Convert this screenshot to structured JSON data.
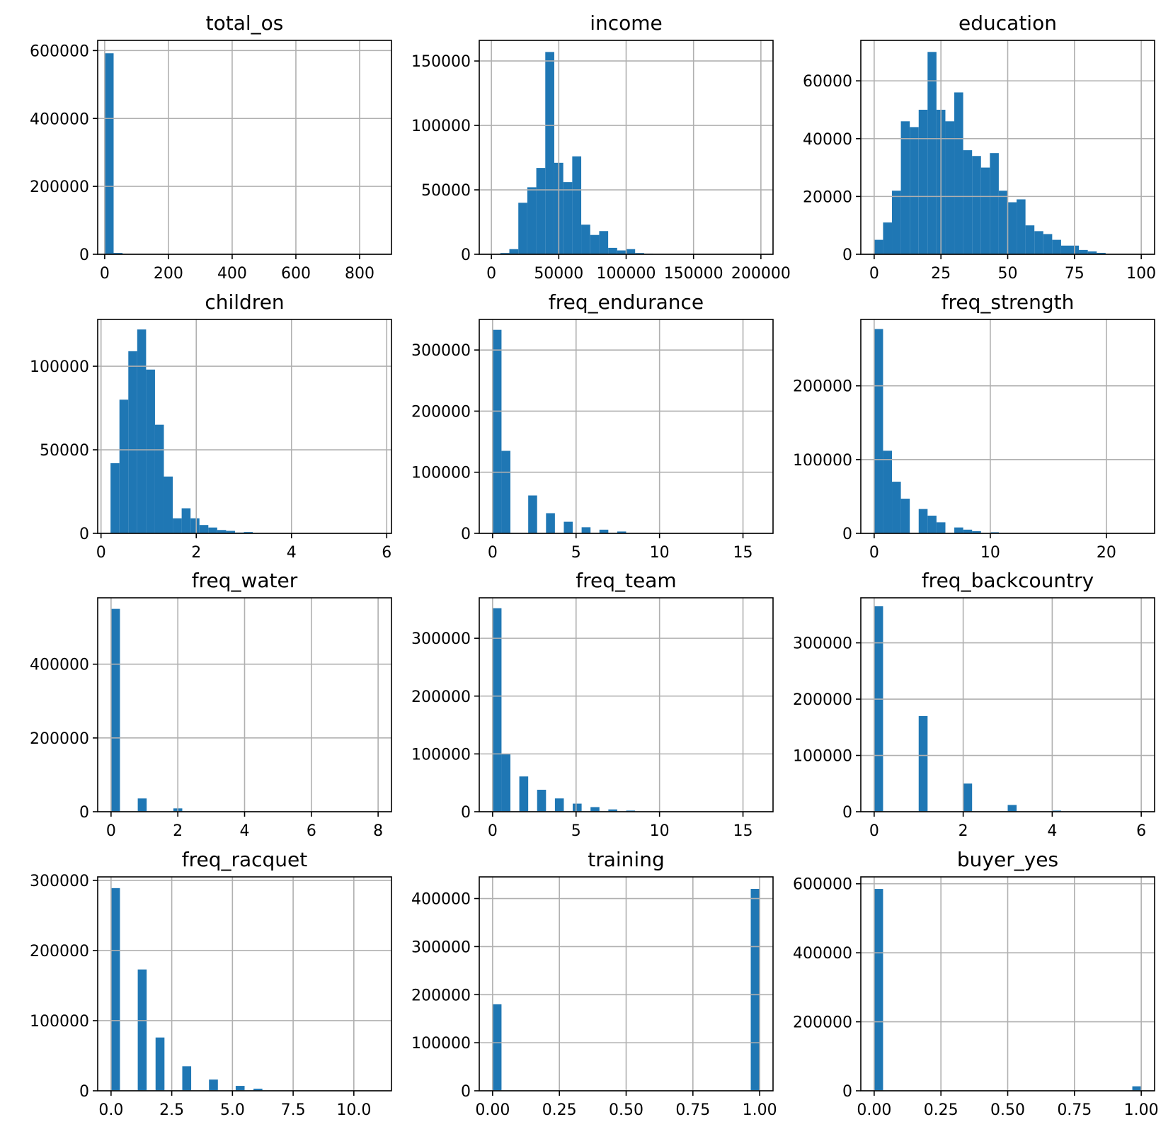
{
  "chart_data": [
    {
      "type": "bar",
      "title": "total_os",
      "bar_color": "#1f77b4",
      "xlim": [
        -22,
        900
      ],
      "ylim": [
        0,
        630000
      ],
      "xticks": [
        0,
        200,
        400,
        600,
        800
      ],
      "xtick_labels": [
        "0",
        "200",
        "400",
        "600",
        "800"
      ],
      "yticks": [
        0,
        200000,
        400000,
        600000
      ],
      "ytick_labels": [
        "0",
        "200000",
        "400000",
        "600000"
      ],
      "bin_start": 0,
      "bin_width": 28,
      "values": [
        592000,
        4000,
        0,
        0,
        0,
        0,
        0,
        0,
        0,
        0,
        0,
        0,
        0,
        0,
        0,
        0,
        0,
        0,
        0,
        0,
        0,
        0,
        0,
        0,
        0,
        0,
        0,
        0,
        0,
        0
      ]
    },
    {
      "type": "bar",
      "title": "income",
      "bar_color": "#1f77b4",
      "xlim": [
        -9000,
        209000
      ],
      "ylim": [
        0,
        166000
      ],
      "xticks": [
        0,
        50000,
        100000,
        150000,
        200000
      ],
      "xtick_labels": [
        "0",
        "50000",
        "100000",
        "150000",
        "200000"
      ],
      "yticks": [
        0,
        50000,
        100000,
        150000
      ],
      "ytick_labels": [
        "0",
        "50000",
        "100000",
        "150000"
      ],
      "bin_start": 0,
      "bin_width": 6667,
      "values": [
        0,
        1000,
        4000,
        40000,
        52000,
        67000,
        157000,
        71000,
        56000,
        76000,
        23000,
        15000,
        18000,
        5000,
        3000,
        4000,
        1000,
        500,
        200,
        100,
        0,
        0,
        0,
        0,
        0,
        0,
        0,
        0,
        0,
        0
      ]
    },
    {
      "type": "bar",
      "title": "education",
      "bar_color": "#1f77b4",
      "xlim": [
        -5,
        105
      ],
      "ylim": [
        0,
        74000
      ],
      "xticks": [
        0,
        25,
        50,
        75,
        100
      ],
      "xtick_labels": [
        "0",
        "25",
        "50",
        "75",
        "100"
      ],
      "yticks": [
        0,
        20000,
        40000,
        60000
      ],
      "ytick_labels": [
        "0",
        "20000",
        "40000",
        "60000"
      ],
      "bin_start": 0,
      "bin_width": 3.333,
      "values": [
        5000,
        11000,
        22000,
        46000,
        44000,
        50000,
        70000,
        50000,
        46000,
        56000,
        36000,
        34000,
        30000,
        35000,
        22000,
        18000,
        19000,
        10000,
        8000,
        7000,
        5000,
        3000,
        3000,
        1500,
        1000,
        500,
        0,
        0,
        0,
        0
      ]
    },
    {
      "type": "bar",
      "title": "children",
      "bar_color": "#1f77b4",
      "xlim": [
        -0.07,
        6.1
      ],
      "ylim": [
        0,
        128000
      ],
      "xticks": [
        0,
        2,
        4,
        6
      ],
      "xtick_labels": [
        "0",
        "2",
        "4",
        "6"
      ],
      "yticks": [
        0,
        50000,
        100000
      ],
      "ytick_labels": [
        "0",
        "50000",
        "100000"
      ],
      "bin_start": 0.2,
      "bin_width": 0.1867,
      "values": [
        42000,
        80000,
        109000,
        122000,
        98000,
        65000,
        34000,
        9000,
        15000,
        9000,
        5000,
        3500,
        2000,
        1500,
        500,
        800,
        0,
        0,
        0,
        0,
        0,
        0,
        0,
        0,
        0,
        0,
        0,
        0,
        0,
        0
      ]
    },
    {
      "type": "bar",
      "title": "freq_endurance",
      "bar_color": "#1f77b4",
      "xlim": [
        -0.8,
        16.8
      ],
      "ylim": [
        0,
        350000
      ],
      "xticks": [
        0,
        5,
        10,
        15
      ],
      "xtick_labels": [
        "0",
        "5",
        "10",
        "15"
      ],
      "yticks": [
        0,
        100000,
        200000,
        300000
      ],
      "ytick_labels": [
        "0",
        "100000",
        "200000",
        "300000"
      ],
      "bin_start": 0,
      "bin_width": 0.5333,
      "values": [
        333000,
        135000,
        0,
        0,
        62000,
        0,
        33000,
        0,
        19000,
        0,
        10000,
        0,
        6000,
        0,
        3000,
        0,
        0,
        0,
        0,
        0,
        0,
        0,
        0,
        0,
        0,
        0,
        0,
        0,
        0,
        0
      ]
    },
    {
      "type": "bar",
      "title": "freq_strength",
      "bar_color": "#1f77b4",
      "xlim": [
        -1.15,
        24.15
      ],
      "ylim": [
        0,
        290000
      ],
      "xticks": [
        0,
        10,
        20
      ],
      "xtick_labels": [
        "0",
        "10",
        "20"
      ],
      "yticks": [
        0,
        100000,
        200000
      ],
      "ytick_labels": [
        "0",
        "100000",
        "200000"
      ],
      "bin_start": 0,
      "bin_width": 0.7667,
      "values": [
        277000,
        112000,
        70000,
        47000,
        0,
        33000,
        24000,
        15000,
        0,
        8000,
        5000,
        3000,
        0,
        1500,
        500,
        0,
        0,
        0,
        0,
        0,
        0,
        0,
        0,
        0,
        0,
        0,
        0,
        0,
        0,
        0
      ]
    },
    {
      "type": "bar",
      "title": "freq_water",
      "bar_color": "#1f77b4",
      "xlim": [
        -0.4,
        8.4
      ],
      "ylim": [
        0,
        580000
      ],
      "xticks": [
        0,
        2,
        4,
        6,
        8
      ],
      "xtick_labels": [
        "0",
        "2",
        "4",
        "6",
        "8"
      ],
      "yticks": [
        0,
        200000,
        400000
      ],
      "ytick_labels": [
        "0",
        "200000",
        "400000"
      ],
      "bin_start": 0,
      "bin_width": 0.2667,
      "values": [
        550000,
        0,
        0,
        36000,
        0,
        0,
        0,
        9000,
        0,
        0,
        0,
        0,
        0,
        0,
        0,
        0,
        0,
        0,
        0,
        0,
        0,
        0,
        0,
        0,
        0,
        0,
        0,
        0,
        0,
        0
      ]
    },
    {
      "type": "bar",
      "title": "freq_team",
      "bar_color": "#1f77b4",
      "xlim": [
        -0.8,
        16.8
      ],
      "ylim": [
        0,
        370000
      ],
      "xticks": [
        0,
        5,
        10,
        15
      ],
      "xtick_labels": [
        "0",
        "5",
        "10",
        "15"
      ],
      "yticks": [
        0,
        100000,
        200000,
        300000
      ],
      "ytick_labels": [
        "0",
        "100000",
        "200000",
        "300000"
      ],
      "bin_start": 0,
      "bin_width": 0.5333,
      "values": [
        352000,
        100000,
        0,
        61000,
        0,
        38000,
        0,
        23000,
        0,
        14000,
        0,
        8000,
        0,
        4000,
        0,
        2000,
        0,
        0,
        0,
        0,
        0,
        0,
        0,
        0,
        0,
        0,
        0,
        0,
        0,
        0
      ]
    },
    {
      "type": "bar",
      "title": "freq_backcountry",
      "bar_color": "#1f77b4",
      "xlim": [
        -0.3,
        6.3
      ],
      "ylim": [
        0,
        380000
      ],
      "xticks": [
        0,
        2,
        4,
        6
      ],
      "xtick_labels": [
        "0",
        "2",
        "4",
        "6"
      ],
      "yticks": [
        0,
        100000,
        200000,
        300000
      ],
      "ytick_labels": [
        "0",
        "100000",
        "200000",
        "300000"
      ],
      "bin_start": 0,
      "bin_width": 0.2,
      "values": [
        365000,
        0,
        0,
        0,
        0,
        170000,
        0,
        0,
        0,
        0,
        50000,
        0,
        0,
        0,
        0,
        12000,
        0,
        0,
        0,
        0,
        2000,
        0,
        0,
        0,
        0,
        0,
        0,
        0,
        0,
        0
      ]
    },
    {
      "type": "bar",
      "title": "freq_racquet",
      "bar_color": "#1f77b4",
      "xlim": [
        -0.55,
        11.55
      ],
      "ylim": [
        0,
        305000
      ],
      "xticks": [
        0,
        2.5,
        5,
        7.5,
        10
      ],
      "xtick_labels": [
        "0.0",
        "2.5",
        "5.0",
        "7.5",
        "10.0"
      ],
      "yticks": [
        0,
        100000,
        200000,
        300000
      ],
      "ytick_labels": [
        "0",
        "100000",
        "200000",
        "300000"
      ],
      "bin_start": 0,
      "bin_width": 0.3667,
      "values": [
        289000,
        0,
        0,
        173000,
        0,
        76000,
        0,
        0,
        35000,
        0,
        0,
        16000,
        0,
        0,
        7000,
        0,
        3000,
        0,
        0,
        0,
        0,
        0,
        0,
        0,
        0,
        0,
        0,
        0,
        0,
        0
      ]
    },
    {
      "type": "bar",
      "title": "training",
      "bar_color": "#1f77b4",
      "xlim": [
        -0.05,
        1.05
      ],
      "ylim": [
        0,
        445000
      ],
      "xticks": [
        0,
        0.25,
        0.5,
        0.75,
        1
      ],
      "xtick_labels": [
        "0.00",
        "0.25",
        "0.50",
        "0.75",
        "1.00"
      ],
      "yticks": [
        0,
        100000,
        200000,
        300000,
        400000
      ],
      "ytick_labels": [
        "0",
        "100000",
        "200000",
        "300000",
        "400000"
      ],
      "bin_start": 0,
      "bin_width": 0.03333,
      "values": [
        180000,
        0,
        0,
        0,
        0,
        0,
        0,
        0,
        0,
        0,
        0,
        0,
        0,
        0,
        0,
        0,
        0,
        0,
        0,
        0,
        0,
        0,
        0,
        0,
        0,
        0,
        0,
        0,
        0,
        420000
      ]
    },
    {
      "type": "bar",
      "title": "buyer_yes",
      "bar_color": "#1f77b4",
      "xlim": [
        -0.05,
        1.05
      ],
      "ylim": [
        0,
        620000
      ],
      "xticks": [
        0,
        0.25,
        0.5,
        0.75,
        1
      ],
      "xtick_labels": [
        "0.00",
        "0.25",
        "0.50",
        "0.75",
        "1.00"
      ],
      "yticks": [
        0,
        200000,
        400000,
        600000
      ],
      "ytick_labels": [
        "0",
        "200000",
        "400000",
        "600000"
      ],
      "bin_start": 0,
      "bin_width": 0.03333,
      "values": [
        585000,
        0,
        0,
        0,
        0,
        0,
        0,
        0,
        0,
        0,
        0,
        0,
        0,
        0,
        0,
        0,
        0,
        0,
        0,
        0,
        0,
        0,
        0,
        0,
        0,
        0,
        0,
        0,
        0,
        13000
      ]
    }
  ]
}
